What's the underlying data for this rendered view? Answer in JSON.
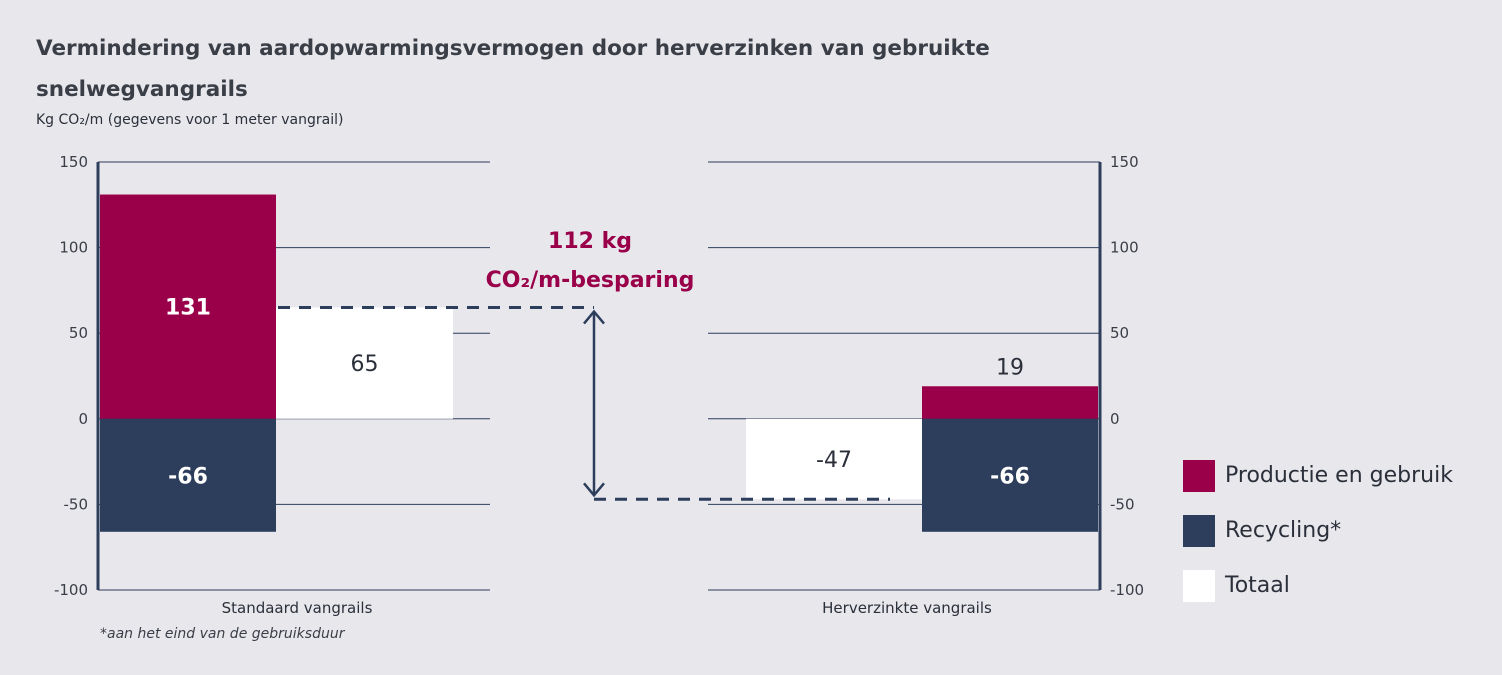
{
  "title": "Vermindering van aardopwarmingsvermogen door herverzinken van gebruikte snelwegvangrails",
  "subtitle": "Kg CO₂/m (gegevens voor 1 meter vangrail)",
  "footnote": "*aan het eind van de gebruiksduur",
  "chart_data": {
    "type": "bar",
    "ylim": [
      -100,
      150
    ],
    "yticks": [
      "150",
      "100",
      "50",
      "0",
      "-50",
      "-100"
    ],
    "groups": [
      {
        "label": "Standaard vangrails",
        "series": [
          {
            "name": "Productie en gebruik",
            "value": 131,
            "label": "131"
          },
          {
            "name": "Recycling*",
            "value": -66,
            "label": "-66"
          },
          {
            "name": "Totaal",
            "value": 65,
            "label": "65"
          }
        ]
      },
      {
        "label": "Herverzinkte vangrails",
        "series": [
          {
            "name": "Totaal",
            "value": -47,
            "label": "-47"
          },
          {
            "name": "Productie en gebruik",
            "value": 19,
            "label": "19"
          },
          {
            "name": "Recycling*",
            "value": -66,
            "label": "-66"
          }
        ]
      }
    ],
    "annotation": {
      "line1": "112 kg",
      "line2": "CO₂/m-besparing",
      "from": 65,
      "to": -47
    },
    "legend": [
      {
        "name": "Productie en gebruik",
        "color": "#990049"
      },
      {
        "name": "Recycling*",
        "color": "#2c3e5c"
      },
      {
        "name": "Totaal",
        "color": "#ffffff"
      }
    ],
    "grid": true,
    "legend_position": "right"
  }
}
